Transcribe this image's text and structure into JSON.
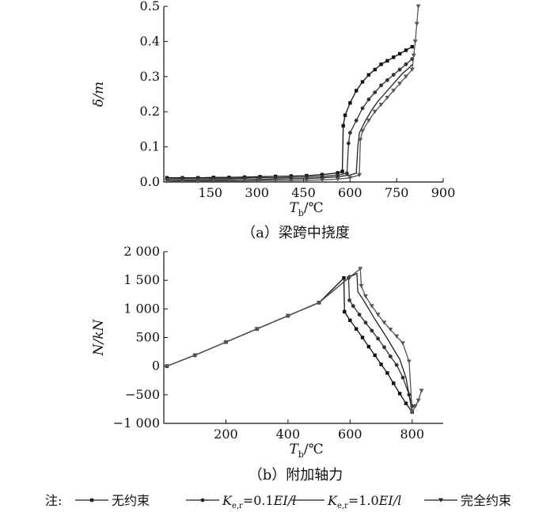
{
  "chart_data": [
    {
      "type": "line",
      "caption": "（a）梁跨中挠度",
      "ylabel": "δ/m",
      "xlabel_main": "T",
      "xlabel_sub": "b",
      "xlabel_unit": "/℃",
      "xlim": [
        0,
        900
      ],
      "ylim": [
        0,
        0.5
      ],
      "xticks": [
        150,
        300,
        450,
        600,
        750,
        900
      ],
      "yticks": [
        0.0,
        0.1,
        0.2,
        0.3,
        0.4,
        0.5
      ],
      "yticklabels": [
        "0.0",
        "0.1",
        "0.2",
        "0.3",
        "0.4",
        "0.5"
      ],
      "series": [
        {
          "name": "无约束",
          "marker": "square",
          "color": "#111111",
          "x": [
            10,
            60,
            110,
            160,
            210,
            260,
            310,
            360,
            410,
            460,
            510,
            560,
            575,
            578,
            584,
            600,
            620,
            640,
            660,
            680,
            700,
            720,
            740,
            760,
            780,
            800
          ],
          "y": [
            0.012,
            0.012,
            0.012,
            0.013,
            0.013,
            0.014,
            0.015,
            0.016,
            0.017,
            0.018,
            0.021,
            0.026,
            0.03,
            0.16,
            0.19,
            0.225,
            0.26,
            0.285,
            0.305,
            0.32,
            0.335,
            0.345,
            0.355,
            0.365,
            0.375,
            0.385
          ]
        },
        {
          "name": "K_e,r=0.1EI/l",
          "marker": "circle",
          "color": "#333333",
          "x": [
            10,
            60,
            110,
            160,
            210,
            260,
            310,
            360,
            410,
            460,
            510,
            560,
            590,
            595,
            600,
            620,
            640,
            660,
            680,
            700,
            720,
            740,
            760,
            780,
            800
          ],
          "y": [
            0.008,
            0.009,
            0.009,
            0.01,
            0.01,
            0.011,
            0.012,
            0.012,
            0.013,
            0.014,
            0.016,
            0.02,
            0.025,
            0.11,
            0.14,
            0.175,
            0.21,
            0.235,
            0.255,
            0.275,
            0.29,
            0.305,
            0.32,
            0.335,
            0.35
          ]
        },
        {
          "name": "K_e,r=1.0EI/l",
          "marker": "none",
          "color": "#222222",
          "x": [
            10,
            60,
            110,
            160,
            210,
            260,
            310,
            360,
            410,
            460,
            510,
            560,
            600,
            620,
            625,
            630,
            650,
            670,
            690,
            710,
            730,
            750,
            770,
            790,
            800
          ],
          "y": [
            0.004,
            0.005,
            0.005,
            0.006,
            0.006,
            0.007,
            0.007,
            0.008,
            0.009,
            0.01,
            0.012,
            0.015,
            0.02,
            0.025,
            0.1,
            0.14,
            0.175,
            0.205,
            0.23,
            0.25,
            0.27,
            0.29,
            0.31,
            0.325,
            0.335
          ]
        },
        {
          "name": "完全约束",
          "marker": "triangle",
          "color": "#555555",
          "x": [
            10,
            60,
            110,
            160,
            210,
            260,
            310,
            360,
            410,
            460,
            510,
            560,
            600,
            630,
            633,
            640,
            660,
            680,
            700,
            720,
            740,
            760,
            780,
            800,
            805,
            810,
            815,
            820
          ],
          "y": [
            0.002,
            0.002,
            0.002,
            0.003,
            0.003,
            0.003,
            0.004,
            0.004,
            0.004,
            0.005,
            0.006,
            0.008,
            0.012,
            0.02,
            0.12,
            0.145,
            0.175,
            0.2,
            0.22,
            0.24,
            0.26,
            0.28,
            0.3,
            0.32,
            0.36,
            0.4,
            0.45,
            0.5
          ]
        }
      ]
    },
    {
      "type": "line",
      "caption": "（b）附加轴力",
      "ylabel": "N/kN",
      "xlabel_main": "T",
      "xlabel_sub": "b",
      "xlabel_unit": "/℃",
      "xlim": [
        0,
        900
      ],
      "ylim": [
        -1000,
        2000
      ],
      "xticks": [
        200,
        400,
        600,
        800
      ],
      "yticks": [
        -1000,
        -500,
        0,
        500,
        1000,
        1500,
        2000
      ],
      "yticklabels": [
        "−1 000",
        "−500",
        "0",
        "500",
        "1 000",
        "1 500",
        "2 000"
      ],
      "series": [
        {
          "name": "无约束",
          "marker": "square",
          "color": "#111111",
          "x": [
            10,
            100,
            200,
            300,
            400,
            500,
            580,
            582,
            600,
            620,
            640,
            660,
            680,
            700,
            720,
            740,
            760,
            780,
            800
          ],
          "y": [
            0,
            190,
            420,
            650,
            880,
            1110,
            1540,
            950,
            800,
            650,
            500,
            340,
            190,
            30,
            -120,
            -300,
            -480,
            -650,
            -800
          ]
        },
        {
          "name": "K_e,r=0.1EI/l",
          "marker": "circle",
          "color": "#333333",
          "x": [
            10,
            100,
            200,
            300,
            400,
            500,
            595,
            598,
            610,
            630,
            650,
            670,
            690,
            710,
            730,
            750,
            770,
            790,
            800
          ],
          "y": [
            0,
            190,
            420,
            650,
            880,
            1110,
            1540,
            1150,
            1050,
            900,
            760,
            620,
            480,
            330,
            170,
            20,
            -200,
            -500,
            -700
          ]
        },
        {
          "name": "K_e,r=1.0EI/l",
          "marker": "none",
          "color": "#222222",
          "x": [
            10,
            100,
            200,
            300,
            400,
            500,
            600,
            622,
            625,
            640,
            660,
            680,
            700,
            720,
            740,
            760,
            780,
            800
          ],
          "y": [
            0,
            190,
            420,
            650,
            880,
            1110,
            1560,
            1620,
            1300,
            1180,
            1000,
            820,
            650,
            480,
            300,
            120,
            -200,
            -800
          ]
        },
        {
          "name": "完全约束",
          "marker": "triangle",
          "color": "#555555",
          "x": [
            10,
            100,
            200,
            300,
            400,
            500,
            600,
            633,
            636,
            650,
            670,
            690,
            710,
            730,
            750,
            770,
            790,
            800,
            810,
            820,
            830
          ],
          "y": [
            0,
            190,
            420,
            650,
            880,
            1110,
            1560,
            1700,
            1400,
            1220,
            1050,
            900,
            760,
            640,
            520,
            400,
            80,
            -800,
            -700,
            -600,
            -430
          ]
        }
      ]
    }
  ],
  "legend": {
    "prefix": "注:",
    "items": [
      {
        "text_parts": [
          "无约束"
        ],
        "marker": "square"
      },
      {
        "text_parts": [
          "K",
          "e,r",
          "=0.1",
          "EI/l"
        ],
        "marker": "circle"
      },
      {
        "text_parts": [
          "K",
          "e,r",
          "=1.0",
          "EI/l"
        ],
        "marker": "none"
      },
      {
        "text_parts": [
          "完全约束"
        ],
        "marker": "triangle"
      }
    ]
  }
}
